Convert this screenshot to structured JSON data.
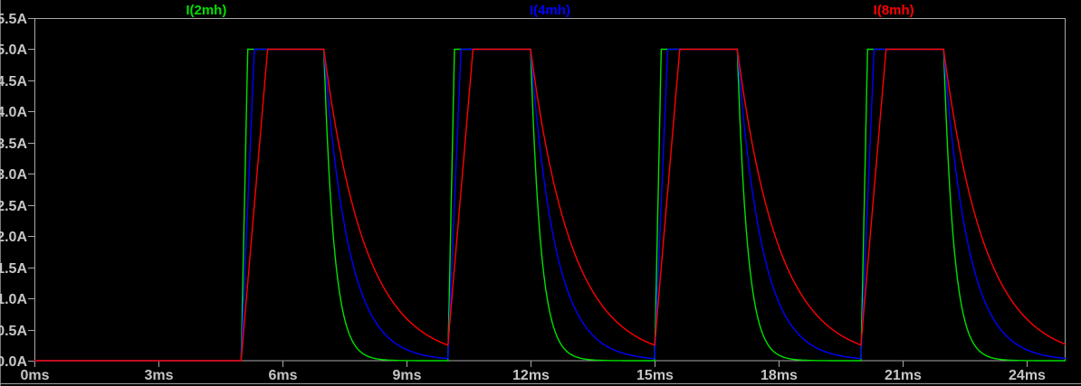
{
  "app": {
    "panel": "waveform-viewer",
    "background": "#000000",
    "frame_color": "#A8A8A8",
    "text_color": "#C6C6C6",
    "left_edge_line_color": "#7A7A7A",
    "bottom_divider_color": "#9A9A9A"
  },
  "traces": [
    {
      "label": "I(2mh)",
      "color": "#00E000"
    },
    {
      "label": "I(4mh)",
      "color": "#0000FF"
    },
    {
      "label": "I(8mh)",
      "color": "#FF0000"
    }
  ],
  "axes": {
    "x": {
      "unit": "ms",
      "tick_values": [
        0,
        3,
        6,
        9,
        12,
        15,
        18,
        21,
        24
      ],
      "tick_labels": [
        "0ms",
        "3ms",
        "6ms",
        "9ms",
        "12ms",
        "15ms",
        "18ms",
        "21ms",
        "24ms"
      ],
      "min": 0,
      "max": 24.94
    },
    "y": {
      "unit": "A",
      "tick_values": [
        0,
        0.5,
        1,
        1.5,
        2,
        2.5,
        3,
        3.5,
        4,
        4.5,
        5,
        5.5
      ],
      "tick_labels": [
        "0.0A",
        "0.5A",
        "1.0A",
        "1.5A",
        "2.0A",
        "2.5A",
        "3.0A",
        "3.5A",
        "4.0A",
        "4.5A",
        "5.0A",
        "5.5A"
      ],
      "min": 0,
      "max": 5.5
    }
  },
  "chart_data": {
    "type": "line",
    "title": "",
    "xlabel": "",
    "ylabel": "",
    "grid": false,
    "legend_position": "top",
    "legend": [
      "I(2mh)",
      "I(4mh)",
      "I(8mh)"
    ],
    "xlim_ms": [
      0,
      24.94
    ],
    "ylim_A": [
      0,
      5.5
    ],
    "x_ticks_ms": [
      0,
      3,
      6,
      9,
      12,
      15,
      18,
      21,
      24
    ],
    "y_ticks_A": [
      0,
      0.5,
      1.0,
      1.5,
      2.0,
      2.5,
      3.0,
      3.5,
      4.0,
      4.5,
      5.0,
      5.5
    ],
    "waveform_model": {
      "description": "Inductor currents: linear ramp up to a 5A plateau while the drive pulse is on, exponential L/R decay while off",
      "pulse_on_ms": [
        5,
        10,
        15,
        20
      ],
      "pulse_off_ms": [
        7,
        12,
        17,
        22
      ],
      "period_ms": 5,
      "on_time_ms": 2,
      "plateau_A": 5
    },
    "series": [
      {
        "name": "I(2mh)",
        "color": "#00E000",
        "rise_to_5A_ms": 0.16,
        "decay_tau_ms": 0.25,
        "keypoints_t_ms_I_A": [
          [
            0,
            0
          ],
          [
            5,
            0
          ],
          [
            5.16,
            5
          ],
          [
            7,
            5
          ],
          [
            7.25,
            1.84
          ],
          [
            7.5,
            0.68
          ],
          [
            8,
            0.09
          ],
          [
            9,
            0.0
          ],
          [
            10,
            0
          ],
          [
            10.16,
            5
          ],
          [
            12,
            5
          ],
          [
            13,
            0.09
          ],
          [
            15,
            0
          ],
          [
            15.16,
            5
          ],
          [
            17,
            5
          ],
          [
            18,
            0.09
          ],
          [
            20,
            0
          ],
          [
            20.16,
            5
          ],
          [
            22,
            5
          ],
          [
            23,
            0.09
          ],
          [
            24.94,
            0
          ]
        ]
      },
      {
        "name": "I(4mh)",
        "color": "#0000FF",
        "rise_to_5A_ms": 0.32,
        "decay_tau_ms": 0.6,
        "keypoints_t_ms_I_A": [
          [
            0,
            0
          ],
          [
            5,
            0
          ],
          [
            5.32,
            5
          ],
          [
            7,
            5
          ],
          [
            7.3,
            3.03
          ],
          [
            7.6,
            1.84
          ],
          [
            8,
            0.94
          ],
          [
            9,
            0.18
          ],
          [
            10,
            0.02
          ],
          [
            10.32,
            5
          ],
          [
            12,
            5
          ],
          [
            13,
            0.94
          ],
          [
            15,
            0.02
          ],
          [
            15.32,
            5
          ],
          [
            17,
            5
          ],
          [
            18,
            0.94
          ],
          [
            20,
            0.02
          ],
          [
            20.32,
            5
          ],
          [
            22,
            5
          ],
          [
            23,
            0.94
          ],
          [
            24.94,
            0.04
          ]
        ]
      },
      {
        "name": "I(8mh)",
        "color": "#FF0000",
        "rise_to_5A_ms": 0.64,
        "decay_tau_ms": 1.0,
        "keypoints_t_ms_I_A": [
          [
            0,
            0
          ],
          [
            5,
            0
          ],
          [
            5.64,
            5
          ],
          [
            7,
            5
          ],
          [
            7.5,
            3.03
          ],
          [
            8,
            1.84
          ],
          [
            9,
            0.68
          ],
          [
            10,
            0.25
          ],
          [
            10.61,
            5
          ],
          [
            12,
            5
          ],
          [
            13,
            1.84
          ],
          [
            15,
            0.25
          ],
          [
            15.61,
            5
          ],
          [
            17,
            5
          ],
          [
            18,
            1.84
          ],
          [
            20,
            0.25
          ],
          [
            20.61,
            5
          ],
          [
            22,
            5
          ],
          [
            23,
            1.84
          ],
          [
            24.94,
            0.26
          ]
        ]
      }
    ]
  }
}
